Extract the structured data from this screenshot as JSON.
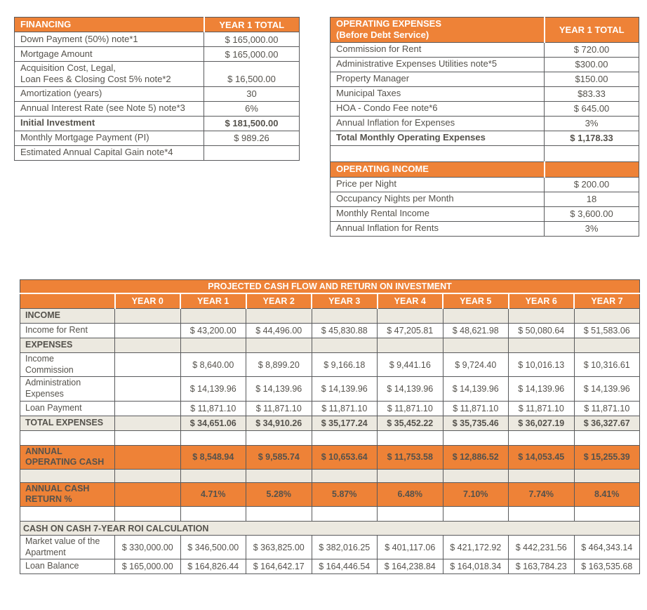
{
  "colors": {
    "accent_orange": "#EE8237",
    "section_beige": "#ECE9E0",
    "border_gray": "#595A5C",
    "text_gray": "#55524C",
    "header_text": "#FFFFFF"
  },
  "financing": {
    "title": "FINANCING",
    "col_header": "YEAR 1 TOTAL",
    "rows": [
      {
        "label": "Down Payment (50%) note*1",
        "value": "$ 165,000.00"
      },
      {
        "label": "Mortgage Amount",
        "value": "$ 165,000.00"
      },
      {
        "label": "Acquisition Cost, Legal,\nLoan Fees & Closing Cost 5% note*2",
        "value": "$ 16,500.00"
      },
      {
        "label": "Amortization (years)",
        "value": "30"
      },
      {
        "label": "Annual Interest Rate (see Note 5) note*3",
        "value": "6%"
      },
      {
        "label": "Initial Investment",
        "value": "$ 181,500.00",
        "bold": true
      },
      {
        "label": "Monthly Mortgage Payment (PI)",
        "value": "$ 989.26"
      },
      {
        "label": "Estimated Annual Capital Gain note*4",
        "value": ""
      }
    ]
  },
  "operating": {
    "title": "OPERATING EXPENSES\n(Before Debt Service)",
    "col_header": "YEAR 1 TOTAL",
    "rows": [
      {
        "label": "Commission for Rent",
        "value": "$ 720.00"
      },
      {
        "label": "Administrative Expenses Utilities note*5",
        "value": "$300.00"
      },
      {
        "label": "Property Manager",
        "value": "$150.00"
      },
      {
        "label": "Municipal Taxes",
        "value": "$83.33"
      },
      {
        "label": "HOA - Condo Fee note*6",
        "value": "$ 645.00"
      },
      {
        "label": "Annual Inflation for Expenses",
        "value": "3%"
      },
      {
        "label": "Total Monthly Operating Expenses",
        "value": "$ 1,178.33",
        "bold": true
      },
      {
        "type": "empty"
      },
      {
        "type": "header",
        "label": "OPERATING INCOME"
      },
      {
        "label": "Price per Night",
        "value": "$ 200.00"
      },
      {
        "label": "Occupancy Nights per Month",
        "value": "18"
      },
      {
        "label": "Monthly Rental Income",
        "value": "$ 3,600.00"
      },
      {
        "label": "Annual Inflation for Rents",
        "value": "3%"
      }
    ]
  },
  "projected": {
    "title": "PROJECTED CASH FLOW AND RETURN ON INVESTMENT",
    "years": [
      "YEAR 0",
      "YEAR 1",
      "YEAR 2",
      "YEAR 3",
      "YEAR 4",
      "YEAR 5",
      "YEAR 6",
      "YEAR 7"
    ],
    "rows": [
      {
        "type": "section",
        "label": "INCOME",
        "values": [
          "",
          "",
          "",
          "",
          "",
          "",
          "",
          ""
        ]
      },
      {
        "type": "data",
        "label": "Income for Rent",
        "values": [
          "",
          "$ 43,200.00",
          "$ 44,496.00",
          "$ 45,830.88",
          "$ 47,205.81",
          "$ 48,621.98",
          "$ 50,080.64",
          "$ 51,583.06"
        ]
      },
      {
        "type": "section",
        "label": "EXPENSES",
        "values": [
          "",
          "",
          "",
          "",
          "",
          "",
          "",
          ""
        ]
      },
      {
        "type": "data",
        "label": "Income\nCommission",
        "values": [
          "",
          "$ 8,640.00",
          "$ 8,899.20",
          "$ 9,166.18",
          "$ 9,441.16",
          "$ 9,724.40",
          "$ 10,016.13",
          "$ 10,316.61"
        ]
      },
      {
        "type": "data",
        "label": "Administration\nExpenses",
        "values": [
          "",
          "$ 14,139.96",
          "$ 14,139.96",
          "$ 14,139.96",
          "$ 14,139.96",
          "$ 14,139.96",
          "$ 14,139.96",
          "$ 14,139.96"
        ]
      },
      {
        "type": "data",
        "label": "Loan Payment",
        "values": [
          "",
          "$ 11,871.10",
          "$ 11,871.10",
          "$ 11,871.10",
          "$ 11,871.10",
          "$ 11,871.10",
          "$ 11,871.10",
          "$ 11,871.10"
        ]
      },
      {
        "type": "section_data",
        "label": "TOTAL EXPENSES",
        "values": [
          "",
          "$ 34,651.06",
          "$ 34,910.26",
          "$ 35,177.24",
          "$ 35,452.22",
          "$ 35,735.46",
          "$ 36,027.19",
          "$ 36,327.67"
        ]
      },
      {
        "type": "empty",
        "label": "",
        "values": [
          "",
          "",
          "",
          "",
          "",
          "",
          "",
          ""
        ]
      },
      {
        "type": "orange",
        "label": "ANNUAL\nOPERATING CASH",
        "values": [
          "",
          "$ 8,548.94",
          "$ 9,585.74",
          "$ 10,653.64",
          "$ 11,753.58",
          "$ 12,886.52",
          "$ 14,053.45",
          "$ 15,255.39"
        ]
      },
      {
        "type": "empty_beige",
        "label": "",
        "values": [
          "",
          "",
          "",
          "",
          "",
          "",
          "",
          ""
        ]
      },
      {
        "type": "orange_pct",
        "label": "ANNUAL CASH\nRETURN %",
        "values": [
          "",
          "4.71%",
          "5.28%",
          "5.87%",
          "6.48%",
          "7.10%",
          "7.74%",
          "8.41%"
        ]
      },
      {
        "type": "empty",
        "label": "",
        "values": [
          "",
          "",
          "",
          "",
          "",
          "",
          "",
          ""
        ]
      },
      {
        "type": "span",
        "label": "CASH ON CASH 7-YEAR ROI CALCULATION"
      },
      {
        "type": "data",
        "label": "Market value of the\nApartment",
        "values": [
          "$ 330,000.00",
          "$ 346,500.00",
          "$ 363,825.00",
          "$ 382,016.25",
          "$ 401,117.06",
          "$ 421,172.92",
          "$ 442,231.56",
          "$ 464,343.14"
        ]
      },
      {
        "type": "data",
        "label": "Loan Balance",
        "values": [
          "$ 165,000.00",
          "$ 164,826.44",
          "$ 164,642.17",
          "$ 164,446.54",
          "$ 164,238.84",
          "$ 164,018.34",
          "$ 163,784.23",
          "$ 163,535.68"
        ]
      }
    ]
  }
}
